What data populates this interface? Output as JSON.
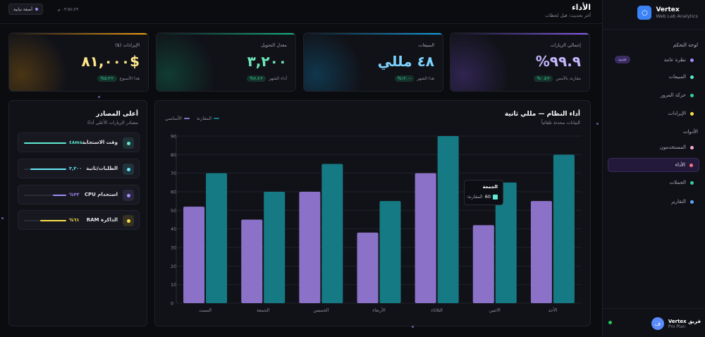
{
  "brand": {
    "name": "Vertex",
    "subtitle": "Web Lab Analytics",
    "logo_icon": "circle-icon"
  },
  "header": {
    "title": "الأداء",
    "subtitle": "آخر تحديث: قبل لحظات",
    "theme_button": "أصفة نيابية",
    "time": "٠٣:٥٤:٤٩ م"
  },
  "sidebar": {
    "section_main": "لوحة التحكم",
    "section_tools": "الأدوات",
    "items": [
      {
        "label": "نظرة عامة",
        "color": "#a78bfa",
        "badge": "جديد"
      },
      {
        "label": "المبيعات",
        "color": "#5eead4"
      },
      {
        "label": "حركة المرور",
        "color": "#34d399"
      },
      {
        "label": "الإيرادات",
        "color": "#fde047"
      },
      {
        "label": "المستخدمون",
        "color": "#f9a8d4"
      },
      {
        "label": "الأداء",
        "color": "#fb7185",
        "active": true
      },
      {
        "label": "الحملات",
        "color": "#34d399"
      },
      {
        "label": "التقارير",
        "color": "#60a5fa"
      }
    ],
    "team": {
      "name": "فريق Vertex",
      "plan": "Pro Plan",
      "avatar": "ف"
    }
  },
  "kpis": [
    {
      "label": "إجمالي الزيارات",
      "value": "٩٩.٩%",
      "delta": "+٠.٥%",
      "note": "مقارنة بالأمس",
      "color": "#c4b5fd",
      "bar": "#8b5cf6"
    },
    {
      "label": "المبيعات",
      "value": "٤٨ مللي",
      "delta": "-١٢.٠%",
      "note": "هذا الشهر",
      "color": "#7dd3fc",
      "bar": "#0ea5e9"
    },
    {
      "label": "معدل التحويل",
      "value": "٣,٢٠٠",
      "delta": "+٧.٤%",
      "note": "أداء الشهر",
      "color": "#6ee7b7",
      "bar": "#10b981"
    },
    {
      "label": "الإيرادات ($)",
      "value": "$٨١,٠٠٠",
      "delta": "+٥.٣%",
      "note": "هذا الأسبوع",
      "color": "#fde68a",
      "bar": "#f59e0b"
    }
  ],
  "chart_panel": {
    "title": "أداء النظام — مللي ثانية",
    "subtitle": "البيانات محدثة تلقائياً",
    "tooltip": {
      "title": "الجمعة",
      "label": "المقارنة:",
      "value": "60"
    }
  },
  "chart_data": {
    "type": "bar",
    "categories": [
      "الأحد",
      "الاثنين",
      "الثلاثاء",
      "الأربعاء",
      "الخميس",
      "الجمعة",
      "السبت"
    ],
    "series": [
      {
        "name": "الأساسي",
        "values": [
          55,
          42,
          70,
          38,
          60,
          45,
          52
        ],
        "color": "#8b72c8"
      },
      {
        "name": "المقارنة",
        "values": [
          80,
          65,
          90,
          55,
          75,
          60,
          70
        ],
        "color": "#157a84"
      }
    ],
    "ylim": [
      0,
      90
    ],
    "yticks": [
      0,
      10,
      20,
      30,
      40,
      50,
      60,
      70,
      80,
      90
    ],
    "grid": true,
    "legend": "top-left"
  },
  "sources": {
    "title": "أعلى المصادر",
    "subtitle": "مصادر الزيارات الأعلى أداءً",
    "items": [
      {
        "label": "وقت الاستجابة",
        "value": "٤٨ms",
        "fill": 1.0,
        "color": "#5eead4",
        "icon": "response-time-icon"
      },
      {
        "label": "الطلبات/ثانية",
        "value": "٣,٢٠٠",
        "fill": 0.85,
        "color": "#67e8f9",
        "icon": "requests-icon"
      },
      {
        "label": "استخدام CPU",
        "value": "٣٢%",
        "fill": 0.32,
        "color": "#a78bfa",
        "icon": "cpu-icon"
      },
      {
        "label": "الذاكرة RAM",
        "value": "٦١%",
        "fill": 0.61,
        "color": "#fde047",
        "icon": "memory-icon"
      }
    ]
  }
}
